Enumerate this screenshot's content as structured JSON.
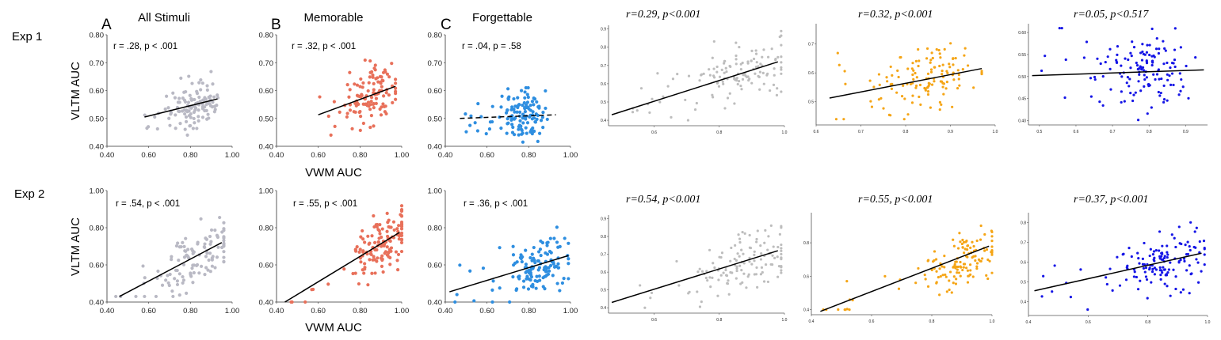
{
  "labels": {
    "row1": "Exp 1",
    "row2": "Exp 2",
    "col_a_letter": "A",
    "col_b_letter": "B",
    "col_c_letter": "C",
    "col_a_title": "All Stimuli",
    "col_b_title": "Memorable",
    "col_c_title": "Forgettable",
    "ylabel": "VLTM AUC",
    "xlabel": "VWM AUC"
  },
  "colors": {
    "gray": "#b9b9c4",
    "salmon": "#e8705a",
    "lightblue": "#2e8ee0",
    "rgray": "#bdbdbd",
    "orange": "#f5a516",
    "blue": "#1515e6"
  },
  "chart_data": [
    {
      "id": "a1",
      "type": "scatter",
      "stat_text": "r = .28, p < .001",
      "xlim": [
        0.4,
        1.0
      ],
      "ylim": [
        0.4,
        0.8
      ],
      "x_ticks": [
        "0.40",
        "0.60",
        "0.80",
        "1.00"
      ],
      "y_ticks": [
        "0.40",
        "0.50",
        "0.60",
        "0.70",
        "0.80"
      ],
      "fit": {
        "x": [
          0.58,
          0.93
        ],
        "y": [
          0.505,
          0.57
        ],
        "dashed": false
      },
      "color_key": "gray",
      "cloud": {
        "n": 120,
        "x_center": 0.82,
        "x_spread": 0.06,
        "x_range": [
          0.58,
          0.95
        ],
        "y_center": 0.545,
        "y_spread": 0.04,
        "y_range": [
          0.44,
          0.67
        ],
        "slope": 0.18
      }
    },
    {
      "id": "b1",
      "type": "scatter",
      "stat_text": "r = .32, p < .001",
      "xlim": [
        0.4,
        1.0
      ],
      "ylim": [
        0.4,
        0.8
      ],
      "x_ticks": [
        "0.40",
        "0.60",
        "0.80",
        "1.00"
      ],
      "y_ticks": [
        "0.40",
        "0.50",
        "0.60",
        "0.70",
        "0.80"
      ],
      "fit": {
        "x": [
          0.6,
          0.97
        ],
        "y": [
          0.513,
          0.615
        ],
        "dashed": false
      },
      "color_key": "salmon",
      "cloud": {
        "n": 120,
        "x_center": 0.86,
        "x_spread": 0.06,
        "x_range": [
          0.6,
          0.97
        ],
        "y_center": 0.585,
        "y_spread": 0.05,
        "y_range": [
          0.44,
          0.75
        ],
        "slope": 0.25
      }
    },
    {
      "id": "c1",
      "type": "scatter",
      "stat_text": "r = .04, p = .58",
      "xlim": [
        0.4,
        1.0
      ],
      "ylim": [
        0.4,
        0.8
      ],
      "x_ticks": [
        "0.40",
        "0.60",
        "0.80",
        "1.00"
      ],
      "y_ticks": [
        "0.40",
        "0.50",
        "0.60",
        "0.70",
        "0.80"
      ],
      "fit": {
        "x": [
          0.47,
          0.93
        ],
        "y": [
          0.5,
          0.513
        ],
        "dashed": true
      },
      "color_key": "lightblue",
      "cloud": {
        "n": 130,
        "x_center": 0.775,
        "x_spread": 0.055,
        "x_range": [
          0.47,
          0.93
        ],
        "y_center": 0.51,
        "y_spread": 0.045,
        "y_range": [
          0.4,
          0.61
        ],
        "slope": 0.02
      }
    },
    {
      "id": "a2",
      "type": "scatter",
      "stat_text": "r = .54, p < .001",
      "xlim": [
        0.4,
        1.0
      ],
      "ylim": [
        0.4,
        1.0
      ],
      "x_ticks": [
        "0.40",
        "0.60",
        "0.80",
        "1.00"
      ],
      "y_ticks": [
        "0.40",
        "0.60",
        "0.80",
        "1.00"
      ],
      "fit": {
        "x": [
          0.46,
          0.95
        ],
        "y": [
          0.43,
          0.72
        ],
        "dashed": false
      },
      "color_key": "gray",
      "cloud": {
        "n": 120,
        "x_center": 0.86,
        "x_spread": 0.09,
        "x_range": [
          0.44,
          0.96
        ],
        "y_center": 0.66,
        "y_spread": 0.07,
        "y_range": [
          0.43,
          0.89
        ],
        "slope": 0.6
      }
    },
    {
      "id": "b2",
      "type": "scatter",
      "stat_text": "r = .55, p < .001",
      "xlim": [
        0.4,
        1.0
      ],
      "ylim": [
        0.4,
        1.0
      ],
      "x_ticks": [
        "0.40",
        "0.60",
        "0.80",
        "1.00"
      ],
      "y_ticks": [
        "0.40",
        "0.60",
        "0.80",
        "1.00"
      ],
      "fit": {
        "x": [
          0.44,
          0.99
        ],
        "y": [
          0.4,
          0.775
        ],
        "dashed": false
      },
      "color_key": "salmon",
      "cloud": {
        "n": 140,
        "x_center": 0.92,
        "x_spread": 0.07,
        "x_range": [
          0.44,
          1.0
        ],
        "y_center": 0.72,
        "y_spread": 0.08,
        "y_range": [
          0.4,
          0.97
        ],
        "slope": 0.7
      }
    },
    {
      "id": "c2",
      "type": "scatter",
      "stat_text": "r = .36, p < .001",
      "xlim": [
        0.4,
        1.0
      ],
      "ylim": [
        0.4,
        1.0
      ],
      "x_ticks": [
        "0.40",
        "0.60",
        "0.80",
        "1.00"
      ],
      "y_ticks": [
        "0.40",
        "0.60",
        "0.80",
        "1.00"
      ],
      "fit": {
        "x": [
          0.42,
          0.99
        ],
        "y": [
          0.455,
          0.65
        ],
        "dashed": false
      },
      "color_key": "lightblue",
      "cloud": {
        "n": 130,
        "x_center": 0.86,
        "x_spread": 0.07,
        "x_range": [
          0.42,
          0.99
        ],
        "y_center": 0.6,
        "y_spread": 0.07,
        "y_range": [
          0.4,
          0.83
        ],
        "slope": 0.35
      }
    },
    {
      "id": "r1a",
      "type": "scatter",
      "stat_text": "r=0.29, p<0.001",
      "xlim": [
        0.46,
        1.0
      ],
      "ylim": [
        0.37,
        0.92
      ],
      "x_ticks": [
        "0.6",
        "0.8",
        "1.0"
      ],
      "y_ticks": [
        "0.4",
        "0.5",
        "0.6",
        "0.7",
        "0.8",
        "0.9"
      ],
      "fit": {
        "x": [
          0.47,
          0.98
        ],
        "y": [
          0.43,
          0.72
        ],
        "dashed": false
      },
      "color_key": "rgray",
      "cloud": {
        "n": 130,
        "x_center": 0.88,
        "x_spread": 0.08,
        "x_range": [
          0.47,
          0.99
        ],
        "y_center": 0.66,
        "y_spread": 0.08,
        "y_range": [
          0.4,
          0.9
        ],
        "slope": 0.55
      }
    },
    {
      "id": "r1b",
      "type": "scatter",
      "stat_text": "r=0.32, p<0.001",
      "xlim": [
        0.6,
        1.0
      ],
      "ylim": [
        0.42,
        0.77
      ],
      "x_ticks": [
        "0.6",
        "0.7",
        "0.8",
        "0.9",
        "1.0"
      ],
      "y_ticks": [
        "0.5",
        "0.6",
        "0.7"
      ],
      "fit": {
        "x": [
          0.63,
          0.97
        ],
        "y": [
          0.513,
          0.615
        ],
        "dashed": false
      },
      "color_key": "orange",
      "cloud": {
        "n": 130,
        "x_center": 0.86,
        "x_spread": 0.05,
        "x_range": [
          0.62,
          0.97
        ],
        "y_center": 0.585,
        "y_spread": 0.05,
        "y_range": [
          0.44,
          0.75
        ],
        "slope": 0.28
      }
    },
    {
      "id": "r1c",
      "type": "scatter",
      "stat_text": "r=0.05, p<0.517",
      "xlim": [
        0.47,
        0.96
      ],
      "ylim": [
        0.39,
        0.62
      ],
      "x_ticks": [
        "0.5",
        "0.6",
        "0.7",
        "0.8",
        "0.9"
      ],
      "y_ticks": [
        "0.40",
        "0.45",
        "0.50",
        "0.55",
        "0.60"
      ],
      "fit": {
        "x": [
          0.48,
          0.95
        ],
        "y": [
          0.502,
          0.515
        ],
        "dashed": false
      },
      "color_key": "blue",
      "cloud": {
        "n": 140,
        "x_center": 0.8,
        "x_spread": 0.06,
        "x_range": [
          0.49,
          0.95
        ],
        "y_center": 0.51,
        "y_spread": 0.045,
        "y_range": [
          0.4,
          0.61
        ],
        "slope": 0.03
      }
    },
    {
      "id": "r2a",
      "type": "scatter",
      "stat_text": "r=0.54, p<0.001",
      "xlim": [
        0.46,
        1.0
      ],
      "ylim": [
        0.37,
        0.92
      ],
      "x_ticks": [
        "0.6",
        "0.8",
        "1.0"
      ],
      "y_ticks": [
        "0.4",
        "0.5",
        "0.6",
        "0.7",
        "0.8",
        "0.9"
      ],
      "fit": {
        "x": [
          0.47,
          0.98
        ],
        "y": [
          0.43,
          0.72
        ],
        "dashed": false
      },
      "color_key": "rgray",
      "cloud": {
        "n": 130,
        "x_center": 0.89,
        "x_spread": 0.08,
        "x_range": [
          0.47,
          0.99
        ],
        "y_center": 0.66,
        "y_spread": 0.08,
        "y_range": [
          0.4,
          0.9
        ],
        "slope": 0.6
      }
    },
    {
      "id": "r2b",
      "type": "scatter",
      "stat_text": "r=0.55, p<0.001",
      "xlim": [
        0.4,
        1.0
      ],
      "ylim": [
        0.37,
        0.98
      ],
      "x_ticks": [
        "0.4",
        "0.6",
        "0.8",
        "1.0"
      ],
      "y_ticks": [
        "0.4",
        "0.6",
        "0.8"
      ],
      "fit": {
        "x": [
          0.43,
          0.99
        ],
        "y": [
          0.39,
          0.78
        ],
        "dashed": false
      },
      "color_key": "orange",
      "cloud": {
        "n": 140,
        "x_center": 0.92,
        "x_spread": 0.07,
        "x_range": [
          0.43,
          1.0
        ],
        "y_center": 0.72,
        "y_spread": 0.08,
        "y_range": [
          0.4,
          0.97
        ],
        "slope": 0.7
      }
    },
    {
      "id": "r2c",
      "type": "scatter",
      "stat_text": "r=0.37, p<0.001",
      "xlim": [
        0.4,
        1.0
      ],
      "ylim": [
        0.33,
        0.85
      ],
      "x_ticks": [
        "0.4",
        "0.6",
        "0.8",
        "1.0"
      ],
      "y_ticks": [
        "0.4",
        "0.5",
        "0.6",
        "0.7",
        "0.8"
      ],
      "fit": {
        "x": [
          0.42,
          0.98
        ],
        "y": [
          0.455,
          0.645
        ],
        "dashed": false
      },
      "color_key": "blue",
      "cloud": {
        "n": 140,
        "x_center": 0.86,
        "x_spread": 0.07,
        "x_range": [
          0.42,
          0.99
        ],
        "y_center": 0.6,
        "y_spread": 0.07,
        "y_range": [
          0.36,
          0.83
        ],
        "slope": 0.35
      }
    }
  ]
}
